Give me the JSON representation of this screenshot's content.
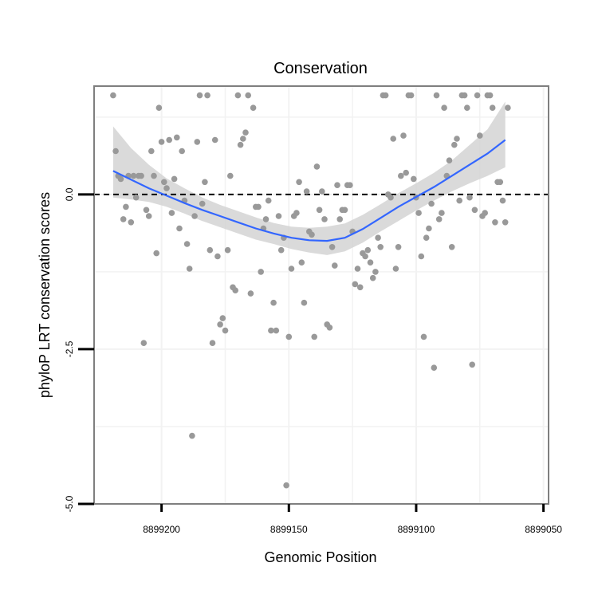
{
  "chart_data": {
    "type": "scatter",
    "title": "Conservation",
    "xlabel": "Genomic Position",
    "ylabel": "phyloP LRT conservation scores",
    "x_reversed": true,
    "xlim": [
      8899226.5,
      8899048
    ],
    "ylim": [
      -5,
      1.75
    ],
    "x_ticks": [
      8899200,
      8899150,
      8899100,
      8899050
    ],
    "x_tick_labels": [
      "8899200",
      "8899150",
      "8899100",
      "8899050"
    ],
    "y_ticks": [
      -5,
      -2.5,
      0
    ],
    "y_tick_labels": [
      "-5.0",
      "-2.5",
      "0.0"
    ],
    "grid": true,
    "reference_line": {
      "y": 0,
      "style": "dashed"
    },
    "colors": {
      "points": "#999999",
      "smooth_line": "#3366FF",
      "ribbon": "#d3d3d3",
      "panel_border": "#7f7f7f",
      "grid": "#f2f2f2"
    },
    "points": [
      [
        8899219,
        1.6
      ],
      [
        8899218,
        0.7
      ],
      [
        8899217,
        0.3
      ],
      [
        8899216,
        0.25
      ],
      [
        8899215,
        -0.4
      ],
      [
        8899214,
        -0.2
      ],
      [
        8899213,
        0.3
      ],
      [
        8899212,
        -0.45
      ],
      [
        8899211,
        0.3
      ],
      [
        8899210,
        -0.05
      ],
      [
        8899209,
        0.3
      ],
      [
        8899208,
        0.3
      ],
      [
        8899207,
        -2.4
      ],
      [
        8899206,
        -0.25
      ],
      [
        8899205,
        -0.35
      ],
      [
        8899204,
        0.7
      ],
      [
        8899203,
        0.3
      ],
      [
        8899202,
        -0.95
      ],
      [
        8899201,
        1.4
      ],
      [
        8899200,
        0.85
      ],
      [
        8899199,
        0.2
      ],
      [
        8899198,
        0.1
      ],
      [
        8899197,
        0.88
      ],
      [
        8899196,
        -0.3
      ],
      [
        8899195,
        0.25
      ],
      [
        8899194,
        0.92
      ],
      [
        8899193,
        -0.55
      ],
      [
        8899192,
        0.7
      ],
      [
        8899191,
        -0.1
      ],
      [
        8899190,
        -0.8
      ],
      [
        8899189,
        -1.2
      ],
      [
        8899188,
        -3.9
      ],
      [
        8899187,
        -0.35
      ],
      [
        8899186,
        0.85
      ],
      [
        8899185,
        1.6
      ],
      [
        8899184,
        -0.15
      ],
      [
        8899183,
        0.2
      ],
      [
        8899182,
        1.6
      ],
      [
        8899181,
        -0.9
      ],
      [
        8899180,
        -2.4
      ],
      [
        8899179,
        0.88
      ],
      [
        8899178,
        -1.0
      ],
      [
        8899177,
        -2.1
      ],
      [
        8899176,
        -2.0
      ],
      [
        8899175,
        -2.2
      ],
      [
        8899174,
        -0.9
      ],
      [
        8899173,
        0.3
      ],
      [
        8899172,
        -1.5
      ],
      [
        8899171,
        -1.55
      ],
      [
        8899170,
        1.6
      ],
      [
        8899169,
        0.8
      ],
      [
        8899168,
        0.9
      ],
      [
        8899167,
        1.0
      ],
      [
        8899166,
        1.6
      ],
      [
        8899165,
        -1.6
      ],
      [
        8899164,
        1.4
      ],
      [
        8899163,
        -0.2
      ],
      [
        8899162,
        -0.2
      ],
      [
        8899161,
        -1.25
      ],
      [
        8899160,
        -0.55
      ],
      [
        8899159,
        -0.4
      ],
      [
        8899158,
        -0.1
      ],
      [
        8899157,
        -2.2
      ],
      [
        8899156,
        -1.75
      ],
      [
        8899155,
        -2.2
      ],
      [
        8899154,
        -0.35
      ],
      [
        8899153,
        -0.9
      ],
      [
        8899152,
        -0.7
      ],
      [
        8899151,
        -4.7
      ],
      [
        8899150,
        -2.3
      ],
      [
        8899149,
        -1.2
      ],
      [
        8899148,
        -0.35
      ],
      [
        8899147,
        -0.3
      ],
      [
        8899146,
        0.2
      ],
      [
        8899145,
        -1.1
      ],
      [
        8899144,
        -1.75
      ],
      [
        8899143,
        0.05
      ],
      [
        8899142,
        -0.6
      ],
      [
        8899141,
        -0.65
      ],
      [
        8899140,
        -2.3
      ],
      [
        8899139,
        0.45
      ],
      [
        8899138,
        -0.25
      ],
      [
        8899137,
        0.05
      ],
      [
        8899136,
        -0.4
      ],
      [
        8899135,
        -2.1
      ],
      [
        8899134,
        -2.15
      ],
      [
        8899133,
        -0.85
      ],
      [
        8899132,
        -1.15
      ],
      [
        8899131,
        0.15
      ],
      [
        8899130,
        -0.4
      ],
      [
        8899129,
        -0.25
      ],
      [
        8899128,
        -0.25
      ],
      [
        8899127,
        0.15
      ],
      [
        8899126,
        0.15
      ],
      [
        8899125,
        -0.6
      ],
      [
        8899124,
        -1.45
      ],
      [
        8899123,
        -1.2
      ],
      [
        8899122,
        -1.5
      ],
      [
        8899121,
        -0.95
      ],
      [
        8899120,
        -1.0
      ],
      [
        8899119,
        -0.9
      ],
      [
        8899118,
        -1.1
      ],
      [
        8899117,
        -1.35
      ],
      [
        8899116,
        -1.25
      ],
      [
        8899115,
        -0.7
      ],
      [
        8899114,
        -0.85
      ],
      [
        8899113,
        1.6
      ],
      [
        8899112,
        1.6
      ],
      [
        8899111,
        0.0
      ],
      [
        8899110,
        -0.05
      ],
      [
        8899109,
        0.9
      ],
      [
        8899108,
        -1.2
      ],
      [
        8899107,
        -0.85
      ],
      [
        8899106,
        0.3
      ],
      [
        8899105,
        0.95
      ],
      [
        8899104,
        0.35
      ],
      [
        8899103,
        1.6
      ],
      [
        8899102,
        1.6
      ],
      [
        8899101,
        0.25
      ],
      [
        8899100,
        -0.05
      ],
      [
        8899099,
        -0.3
      ],
      [
        8899098,
        -1.0
      ],
      [
        8899097,
        -2.3
      ],
      [
        8899096,
        -0.7
      ],
      [
        8899095,
        -0.55
      ],
      [
        8899094,
        -0.15
      ],
      [
        8899093,
        -2.8
      ],
      [
        8899092,
        1.6
      ],
      [
        8899091,
        -0.4
      ],
      [
        8899090,
        -0.3
      ],
      [
        8899089,
        1.4
      ],
      [
        8899088,
        0.3
      ],
      [
        8899087,
        0.55
      ],
      [
        8899086,
        -0.85
      ],
      [
        8899085,
        0.8
      ],
      [
        8899084,
        0.9
      ],
      [
        8899083,
        -0.1
      ],
      [
        8899082,
        1.6
      ],
      [
        8899081,
        1.6
      ],
      [
        8899080,
        1.4
      ],
      [
        8899079,
        -0.05
      ],
      [
        8899078,
        -2.75
      ],
      [
        8899077,
        -0.25
      ],
      [
        8899076,
        1.6
      ],
      [
        8899075,
        0.95
      ],
      [
        8899074,
        -0.35
      ],
      [
        8899073,
        -0.3
      ],
      [
        8899072,
        1.6
      ],
      [
        8899071,
        1.6
      ],
      [
        8899070,
        1.4
      ],
      [
        8899069,
        -0.45
      ],
      [
        8899068,
        0.2
      ],
      [
        8899067,
        0.2
      ],
      [
        8899066,
        -0.1
      ],
      [
        8899065,
        -0.45
      ],
      [
        8899064,
        1.4
      ]
    ],
    "smooth": {
      "x": [
        8899219,
        8899212,
        8899205,
        8899198,
        8899191,
        8899184,
        8899177,
        8899170,
        8899163,
        8899156,
        8899149,
        8899142,
        8899135,
        8899128,
        8899121,
        8899114,
        8899107,
        8899100,
        8899093,
        8899086,
        8899079,
        8899072,
        8899065
      ],
      "y": [
        0.38,
        0.24,
        0.1,
        -0.02,
        -0.14,
        -0.25,
        -0.35,
        -0.45,
        -0.55,
        -0.63,
        -0.7,
        -0.74,
        -0.75,
        -0.7,
        -0.56,
        -0.38,
        -0.2,
        -0.04,
        0.12,
        0.3,
        0.48,
        0.66,
        0.88
      ],
      "lower": [
        -0.05,
        -0.08,
        -0.12,
        -0.2,
        -0.31,
        -0.43,
        -0.53,
        -0.63,
        -0.73,
        -0.8,
        -0.88,
        -0.94,
        -0.98,
        -0.92,
        -0.78,
        -0.6,
        -0.43,
        -0.26,
        -0.1,
        0.05,
        0.18,
        0.3,
        0.44
      ],
      "upper": [
        1.1,
        0.75,
        0.48,
        0.26,
        0.1,
        -0.05,
        -0.17,
        -0.27,
        -0.37,
        -0.46,
        -0.52,
        -0.54,
        -0.52,
        -0.47,
        -0.33,
        -0.16,
        0.02,
        0.18,
        0.35,
        0.55,
        0.8,
        1.05,
        1.5
      ]
    }
  }
}
